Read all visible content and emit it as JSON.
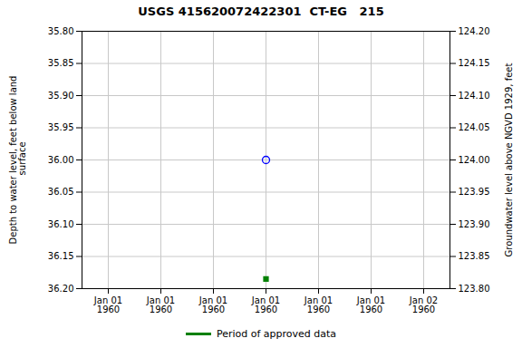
{
  "chart_data": {
    "type": "scatter",
    "title": "USGS 415620072422301  CT-EG   215",
    "ylabel": "Depth to water level, feet below land\n surface",
    "y2label": "Groundwater level above NGVD 1929, feet",
    "categories": [
      "Jan 01\n1960",
      "Jan 01\n1960",
      "Jan 01\n1960",
      "Jan 01\n1960",
      "Jan 01\n1960",
      "Jan 01\n1960",
      "Jan 02\n1960"
    ],
    "series": [
      {
        "color": "blue",
        "marker": "open_circle",
        "values": [
          null,
          null,
          null,
          36.0,
          null,
          null,
          null
        ]
      },
      {
        "name": "Period of approved data",
        "color": "#008000",
        "marker": "square",
        "values": [
          null,
          null,
          null,
          36.185,
          null,
          null,
          null
        ]
      }
    ],
    "ylim": [
      36.2,
      35.8
    ],
    "yticks": [
      {
        "value": 35.8,
        "label": "35.80"
      },
      {
        "value": 35.85,
        "label": "35.85"
      },
      {
        "value": 35.9,
        "label": "35.90"
      },
      {
        "value": 35.95,
        "label": "35.95"
      },
      {
        "value": 36.0,
        "label": "36.00"
      },
      {
        "value": 36.05,
        "label": "36.05"
      },
      {
        "value": 36.1,
        "label": "36.10"
      },
      {
        "value": 36.15,
        "label": "36.15"
      },
      {
        "value": 36.2,
        "label": "36.20"
      }
    ],
    "y2lim": [
      123.8,
      124.2
    ],
    "y2ticks": [
      {
        "value": 124.2,
        "label": "124.20"
      },
      {
        "value": 124.15,
        "label": "124.15"
      },
      {
        "value": 124.1,
        "label": "124.10"
      },
      {
        "value": 124.05,
        "label": "124.05"
      },
      {
        "value": 124.0,
        "label": "124.00"
      },
      {
        "value": 123.95,
        "label": "123.95"
      },
      {
        "value": 123.9,
        "label": "123.90"
      },
      {
        "value": 123.85,
        "label": "123.85"
      },
      {
        "value": 123.8,
        "label": "123.80"
      }
    ],
    "grid": true,
    "legend": "bottom"
  }
}
